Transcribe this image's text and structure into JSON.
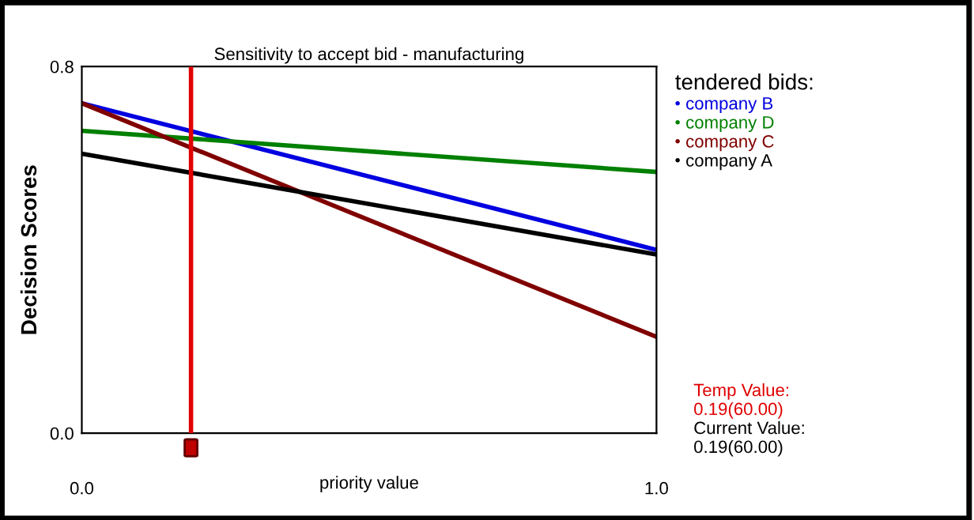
{
  "chart_data": {
    "type": "line",
    "title": "Sensitivity to accept bid - manufacturing",
    "xlabel": "priority value",
    "ylabel": "Decision Scores",
    "legend_title": "tendered bids:",
    "x": [
      0,
      1
    ],
    "series": [
      {
        "name": "company B",
        "color": "#0000e0",
        "values": [
          0.72,
          0.4
        ]
      },
      {
        "name": "company D",
        "color": "#008000",
        "values": [
          0.66,
          0.57
        ]
      },
      {
        "name": "company C",
        "color": "#800000",
        "values": [
          0.72,
          0.21
        ]
      },
      {
        "name": "company A",
        "color": "#000000",
        "values": [
          0.61,
          0.39
        ]
      }
    ],
    "xlim": [
      0,
      1
    ],
    "ylim": [
      0,
      0.8
    ],
    "xticks": [
      {
        "value": 0,
        "label": "0.0"
      },
      {
        "value": 1,
        "label": "1.0"
      }
    ],
    "yticks": [
      {
        "value": 0,
        "label": "0.0"
      },
      {
        "value": 0.8,
        "label": "0.8"
      }
    ],
    "ref_lines": [
      {
        "axis": "x",
        "value": 0.19,
        "label": "Temp Value:\n0.19(60.00)",
        "color": "#e00000"
      }
    ],
    "annotations": [
      "Current Value:\n0.19(60.00)"
    ],
    "grid": false,
    "legend": "right",
    "marker": "none",
    "line_style": "solid"
  }
}
